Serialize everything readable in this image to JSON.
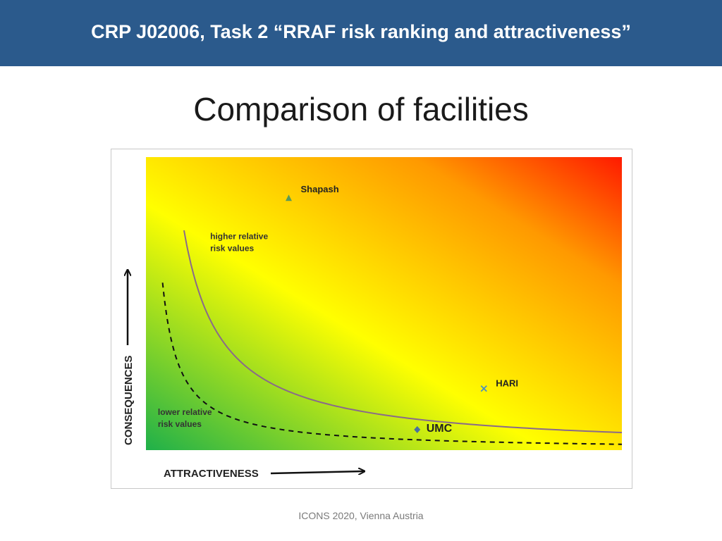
{
  "header": {
    "title": "CRP J02006, Task 2 “RRAF risk ranking and attractiveness”",
    "background_color": "#2b5a8c"
  },
  "slide_title": "Comparison of facilities",
  "footer": "ICONS 2020, Vienna Austria",
  "chart_data": {
    "type": "scatter",
    "title": "",
    "xlabel": "ATTRACTIVENESS",
    "ylabel": "CONSEQUENCES",
    "xlim": [
      0,
      1
    ],
    "ylim": [
      0,
      1
    ],
    "grid": false,
    "axis_ticks": false,
    "background": "diagonal gradient: green (bottom-left) → yellow → orange → red (top-right)",
    "gradient_colors": [
      "#1fb04a",
      "#ffff00",
      "#ff9900",
      "#ff1a00"
    ],
    "points": [
      {
        "name": "Shapash",
        "x": 0.3,
        "y": 0.86,
        "marker": "triangle",
        "color": "#5a9a5a"
      },
      {
        "name": "HARI",
        "x": 0.71,
        "y": 0.21,
        "marker": "x",
        "color": "#4a90c0"
      },
      {
        "name": "UMC",
        "x": 0.57,
        "y": 0.07,
        "marker": "diamond",
        "color": "#4a70a0"
      }
    ],
    "curves": [
      {
        "style": "solid",
        "color": "#8a6a8a",
        "shape": "hyperbola",
        "x_min": 0.08,
        "k": 0.06
      },
      {
        "style": "dashed",
        "color": "#111111",
        "shape": "hyperbola",
        "x_min": 0.035,
        "k": 0.02
      }
    ],
    "annotations": [
      {
        "text": [
          "higher relative",
          "risk values"
        ],
        "x": 0.135,
        "y": 0.72
      },
      {
        "text": [
          "lower relative",
          "risk values"
        ],
        "x": 0.025,
        "y": 0.12
      }
    ]
  }
}
